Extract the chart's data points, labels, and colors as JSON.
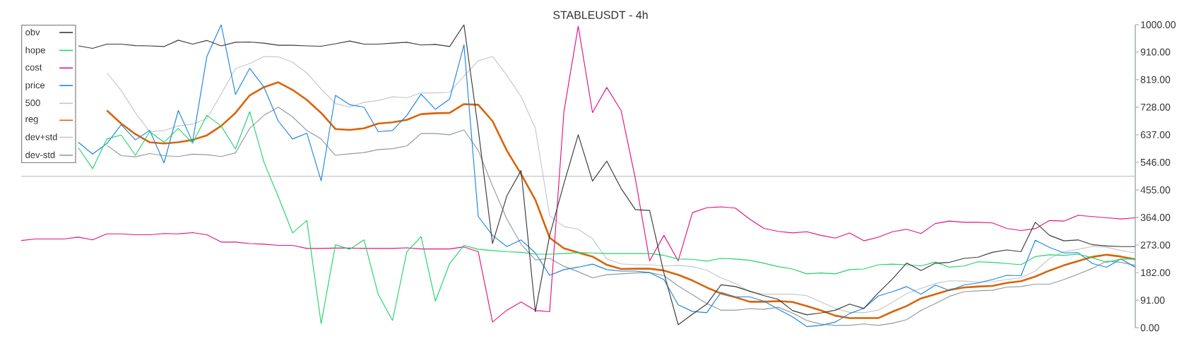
{
  "chart_data": {
    "type": "line",
    "title": "STABLEUSDT - 4h",
    "categories": [
      null,
      null,
      null,
      null,
      null,
      null,
      null,
      null,
      null,
      null,
      null,
      null,
      null,
      null,
      null,
      null,
      null,
      null,
      null,
      null,
      null,
      null,
      null,
      null,
      null,
      null,
      null,
      null,
      null,
      null,
      null,
      null,
      null,
      null,
      null,
      null,
      null,
      null,
      null,
      null,
      null,
      null,
      null,
      null,
      null,
      null,
      null,
      null,
      null,
      null,
      null,
      null,
      null,
      null,
      null,
      null,
      null,
      null,
      null,
      null,
      null,
      null,
      null,
      null,
      null,
      null,
      null,
      null,
      null,
      null,
      null,
      null,
      null,
      null,
      null,
      null,
      null,
      null,
      null
    ],
    "ylim": [
      0,
      1000
    ],
    "yticks": [
      {
        "value": 0,
        "label": "0.00"
      },
      {
        "value": 91,
        "label": "91.00"
      },
      {
        "value": 182,
        "label": "182.00"
      },
      {
        "value": 273,
        "label": "273.00"
      },
      {
        "value": 364,
        "label": "364.00"
      },
      {
        "value": 455,
        "label": "455.00"
      },
      {
        "value": 546,
        "label": "546.00"
      },
      {
        "value": 637,
        "label": "637.00"
      },
      {
        "value": 728,
        "label": "728.00"
      },
      {
        "value": 819,
        "label": "819.00"
      },
      {
        "value": 910,
        "label": "910.00"
      },
      {
        "value": 1000,
        "label": "1000.00"
      }
    ],
    "tick_labels": "y",
    "legend": "top left",
    "ref_lines": [
      {
        "axis": "y",
        "value": 500,
        "label": "500",
        "color": "#c6c6c6"
      }
    ],
    "series": [
      {
        "name": "obv",
        "color": "#3a3a3a",
        "values": [
          null,
          null,
          null,
          null,
          930,
          922,
          936,
          936,
          931,
          930,
          928,
          949,
          936,
          948,
          930,
          942,
          943,
          939,
          932,
          932,
          930,
          929,
          937,
          946,
          936,
          936,
          939,
          942,
          933,
          935,
          928,
          1000,
          655,
          278,
          435,
          519,
          53,
          305,
          476,
          637,
          484,
          550,
          460,
          390,
          387,
          181,
          10,
          45,
          78,
          142,
          136,
          121,
          106,
          94,
          57,
          43,
          49,
          58,
          78,
          64,
          115,
          161,
          214,
          189,
          213,
          216,
          229,
          233,
          249,
          257,
          251,
          348,
          305,
          287,
          290,
          274,
          270,
          268,
          268
        ]
      },
      {
        "name": "hope",
        "color": "#22d46a",
        "values": [
          null,
          null,
          null,
          null,
          594,
          525,
          623,
          636,
          569,
          647,
          612,
          658,
          609,
          701,
          666,
          590,
          713,
          546,
          433,
          313,
          354,
          14,
          274,
          259,
          290,
          110,
          24,
          251,
          301,
          88,
          212,
          272,
          259,
          255,
          251,
          249,
          243,
          243,
          245,
          248,
          247,
          245,
          245,
          245,
          245,
          239,
          227,
          226,
          220,
          229,
          227,
          223,
          213,
          202,
          194,
          178,
          181,
          178,
          192,
          194,
          208,
          210,
          208,
          204,
          217,
          200,
          204,
          218,
          216,
          212,
          208,
          235,
          241,
          239,
          243,
          231,
          216,
          227,
          227
        ]
      },
      {
        "name": "cost",
        "color": "#e3157b",
        "values": [
          288,
          293,
          293,
          293,
          299,
          290,
          310,
          310,
          307,
          307,
          311,
          310,
          314,
          307,
          283,
          283,
          278,
          276,
          272,
          272,
          262,
          262,
          263,
          263,
          262,
          262,
          262,
          264,
          260,
          260,
          260,
          267,
          251,
          19,
          58,
          85,
          57,
          53,
          713,
          995,
          710,
          793,
          717,
          492,
          221,
          305,
          221,
          380,
          396,
          399,
          395,
          359,
          328,
          318,
          313,
          317,
          305,
          296,
          313,
          287,
          299,
          317,
          325,
          311,
          344,
          352,
          348,
          348,
          346,
          328,
          321,
          327,
          354,
          352,
          371,
          367,
          363,
          359,
          363
        ]
      },
      {
        "name": "price",
        "color": "#1e86e0",
        "values": [
          null,
          null,
          null,
          null,
          612,
          573,
          608,
          670,
          620,
          651,
          544,
          717,
          613,
          895,
          1000,
          770,
          856,
          794,
          682,
          623,
          642,
          485,
          767,
          736,
          728,
          647,
          651,
          701,
          771,
          721,
          755,
          934,
          367,
          305,
          268,
          290,
          247,
          173,
          192,
          200,
          210,
          192,
          187,
          187,
          182,
          159,
          76,
          54,
          50,
          117,
          102,
          102,
          88,
          61,
          36,
          4,
          8,
          19,
          47,
          64,
          105,
          119,
          136,
          111,
          141,
          123,
          141,
          148,
          159,
          173,
          172,
          289,
          265,
          247,
          248,
          212,
          200,
          227,
          200
        ]
      },
      {
        "name": "reg",
        "color": "#d9640a",
        "values": [
          null,
          null,
          null,
          null,
          null,
          null,
          717,
          674,
          639,
          612,
          608,
          612,
          620,
          635,
          666,
          709,
          767,
          794,
          810,
          785,
          752,
          709,
          656,
          653,
          658,
          674,
          678,
          686,
          705,
          708,
          709,
          738,
          736,
          682,
          585,
          507,
          422,
          297,
          262,
          248,
          235,
          208,
          194,
          195,
          195,
          189,
          175,
          156,
          133,
          113,
          101,
          86,
          86,
          88,
          85,
          72,
          57,
          40,
          32,
          32,
          32,
          53,
          72,
          97,
          111,
          125,
          133,
          136,
          138,
          148,
          154,
          169,
          189,
          206,
          220,
          234,
          241,
          235,
          226
        ]
      },
      {
        "name": "dev+std",
        "color": "#c3c8cc",
        "values": [
          null,
          null,
          null,
          null,
          null,
          null,
          841,
          783,
          709,
          647,
          651,
          666,
          672,
          690,
          771,
          855,
          872,
          895,
          894,
          876,
          841,
          788,
          740,
          728,
          744,
          750,
          762,
          759,
          775,
          775,
          777,
          830,
          881,
          895,
          833,
          763,
          658,
          369,
          334,
          325,
          294,
          227,
          211,
          208,
          208,
          204,
          206,
          202,
          190,
          165,
          146,
          119,
          111,
          111,
          111,
          106,
          85,
          64,
          51,
          50,
          58,
          84,
          113,
          130,
          146,
          155,
          154,
          151,
          152,
          159,
          165,
          187,
          229,
          251,
          259,
          268,
          266,
          255,
          247
        ]
      },
      {
        "name": "dev-std",
        "color": "#8f9aa2",
        "values": [
          null,
          null,
          null,
          null,
          null,
          null,
          602,
          568,
          564,
          575,
          568,
          565,
          573,
          571,
          565,
          577,
          658,
          701,
          728,
          696,
          651,
          623,
          569,
          574,
          578,
          588,
          591,
          600,
          641,
          641,
          637,
          653,
          585,
          468,
          359,
          276,
          224,
          229,
          203,
          185,
          165,
          175,
          178,
          181,
          182,
          172,
          138,
          109,
          80,
          58,
          58,
          63,
          61,
          68,
          49,
          24,
          12,
          8,
          8,
          13,
          8,
          15,
          27,
          57,
          80,
          104,
          119,
          122,
          124,
          134,
          136,
          144,
          144,
          159,
          177,
          196,
          220,
          216,
          206
        ]
      }
    ]
  }
}
